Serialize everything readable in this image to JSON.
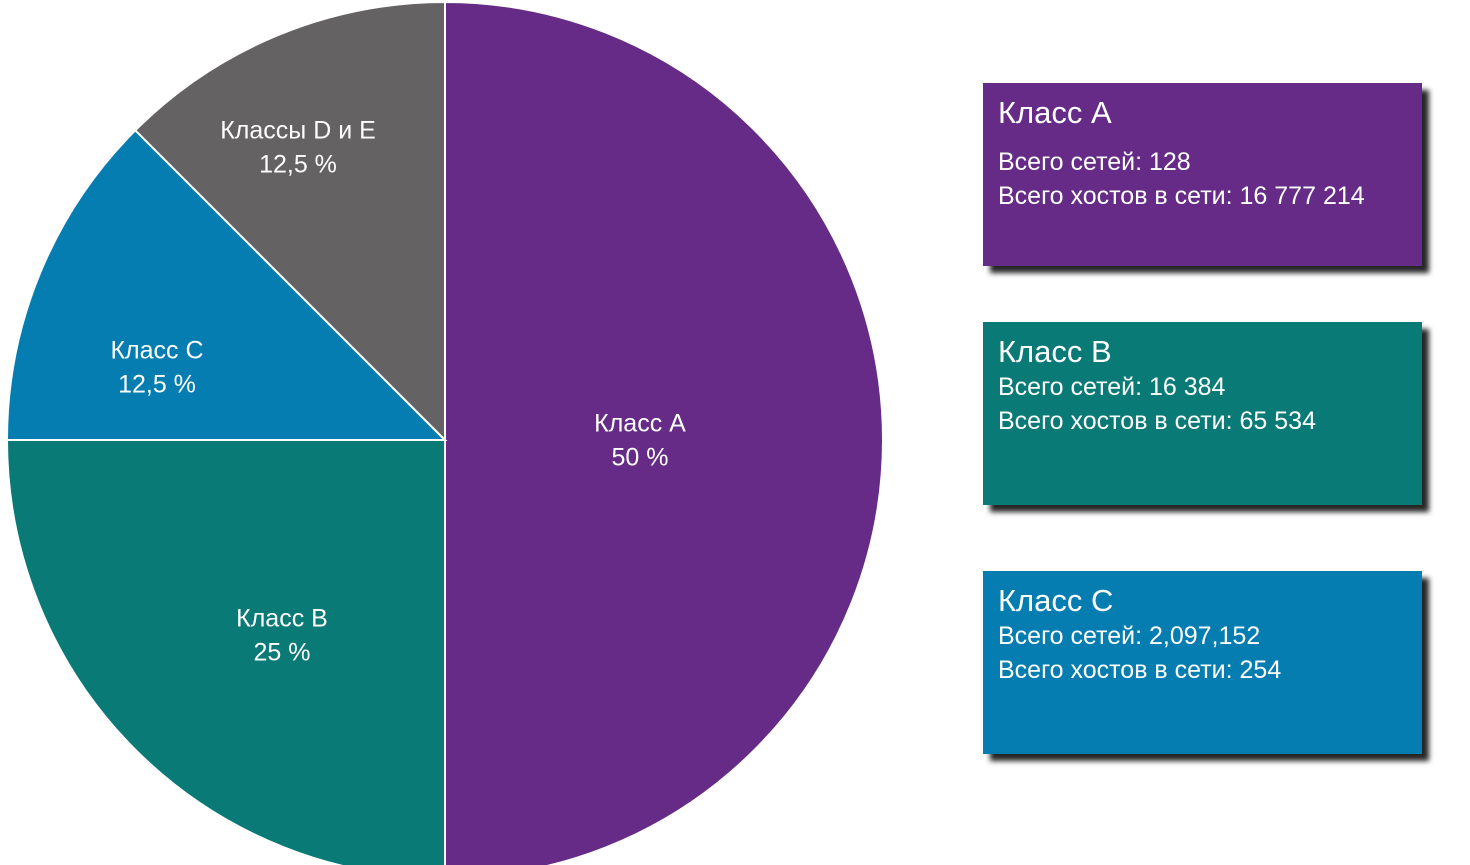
{
  "chart_data": {
    "type": "pie",
    "slices": [
      {
        "name": "Класс A",
        "value": 50,
        "label": "50 %",
        "color": "#652b87"
      },
      {
        "name": "Класс B",
        "value": 25,
        "label": "25 %",
        "color": "#097a76"
      },
      {
        "name": "Класс C",
        "value": 12.5,
        "label": "12,5 %",
        "color": "#057db1"
      },
      {
        "name": "Классы D и E",
        "value": 12.5,
        "label": "12,5 %",
        "color": "#656263"
      }
    ],
    "title": "",
    "legend": "none"
  },
  "cards": [
    {
      "title": "Класс A",
      "line1": "Всего сетей: 128",
      "line2": "Всего хостов в сети: 16 777 214",
      "color": "#652b87"
    },
    {
      "title": "Класс B",
      "line1": "Всего сетей: 16 384",
      "line2": "Всего хостов в сети: 65 534",
      "color": "#097a76"
    },
    {
      "title": "Класс C",
      "line1": "Всего сетей: 2,097,152",
      "line2": "Всего хостов в сети: 254",
      "color": "#057db1"
    }
  ]
}
